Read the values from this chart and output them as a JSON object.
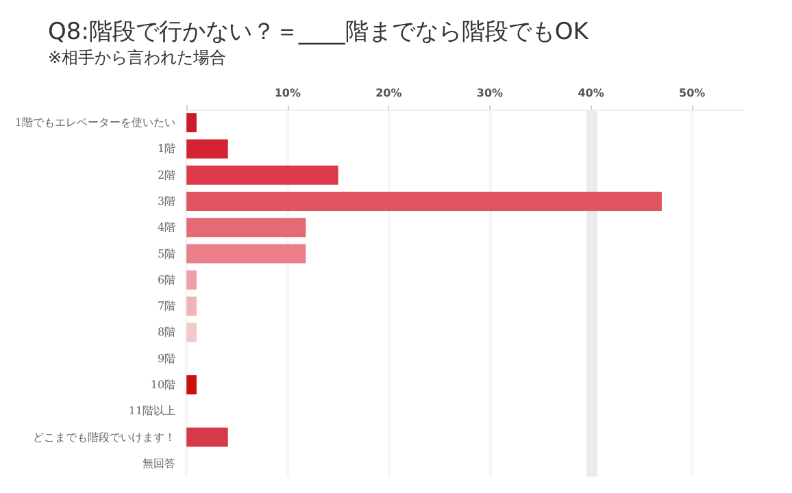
{
  "chart_data": {
    "type": "bar",
    "orientation": "horizontal",
    "title": "Q8:階段で行かない？＝____階までなら階段でもOK",
    "subtitle": "※相手から言われた場合",
    "categories": [
      "1階でもエレベーターを使いたい",
      "1階",
      "2階",
      "3階",
      "4階",
      "5階",
      "6階",
      "7階",
      "8階",
      "9階",
      "10階",
      "11階以上",
      "どこまでも階段でいけます！",
      "無回答"
    ],
    "values": [
      1.0,
      4.1,
      15,
      47,
      11.8,
      11.8,
      1.0,
      1.0,
      1.0,
      0,
      1.0,
      0,
      4.1,
      0
    ],
    "colors": [
      "#cc1b2a",
      "#d42434",
      "#dc3a48",
      "#e05361",
      "#e66a75",
      "#ea7f89",
      "#f0a0a8",
      "#f2b3b8",
      "#f2c8cc",
      "#f2c8cc",
      "#cc1010",
      "#cc1010",
      "#d63a48",
      "#d63a48"
    ],
    "xlim": [
      0,
      55
    ],
    "xticks": [
      {
        "value": 0,
        "label": null
      },
      {
        "value": 10,
        "label": "10%"
      },
      {
        "value": 20,
        "label": "20%"
      },
      {
        "value": 30,
        "label": "30%"
      },
      {
        "value": 40,
        "label": "40%"
      },
      {
        "value": 50,
        "label": "50%"
      }
    ],
    "grid": "x",
    "ref_lines": [
      {
        "axis": "x",
        "value": 40,
        "color": "#ebebeb"
      }
    ]
  }
}
